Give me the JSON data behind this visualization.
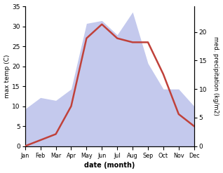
{
  "months": [
    "Jan",
    "Feb",
    "Mar",
    "Apr",
    "May",
    "Jun",
    "Jul",
    "Aug",
    "Sep",
    "Oct",
    "Nov",
    "Dec"
  ],
  "temperature": [
    0.0,
    1.5,
    3.0,
    10.0,
    27.0,
    30.5,
    27.0,
    26.0,
    26.0,
    18.0,
    8.0,
    5.0
  ],
  "precipitation": [
    6.5,
    8.5,
    8.0,
    10.0,
    21.5,
    22.0,
    19.5,
    23.5,
    14.5,
    10.0,
    10.0,
    7.0
  ],
  "temp_color": "#c0413a",
  "precip_fill_color": "#b0b8e8",
  "xlabel": "date (month)",
  "ylabel_left": "max temp (C)",
  "ylabel_right": "med. precipitation (kg/m2)",
  "ylim_left": [
    0,
    35
  ],
  "ylim_right": [
    0,
    24.5
  ],
  "yticks_left": [
    0,
    5,
    10,
    15,
    20,
    25,
    30,
    35
  ],
  "yticks_right": [
    0,
    5,
    10,
    15,
    20
  ],
  "background_color": "#ffffff",
  "temp_linewidth": 1.8,
  "precip_alpha": 0.75
}
